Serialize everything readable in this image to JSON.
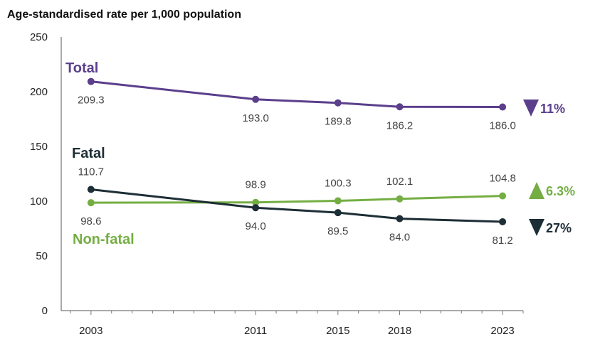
{
  "chart_data": {
    "type": "line",
    "title": "Age-standardised rate per 1,000 population",
    "x": [
      2003,
      2011,
      2015,
      2018,
      2023
    ],
    "x_tick_labels": [
      "2003",
      "2011",
      "2015",
      "2018",
      "2023"
    ],
    "xlim": [
      2001,
      2024
    ],
    "ylim": [
      0,
      250
    ],
    "y_ticks": [
      0,
      50,
      100,
      150,
      200,
      250
    ],
    "grid": false,
    "series": [
      {
        "key": "total",
        "name": "Total",
        "color": "#5B3F8C",
        "values": [
          209.3,
          193.0,
          189.8,
          186.2,
          186.0
        ],
        "value_labels": [
          "209.3",
          "193.0",
          "189.8",
          "186.2",
          "186.0"
        ],
        "change": {
          "direction": "down",
          "label": "11%"
        }
      },
      {
        "key": "fatal",
        "name": "Fatal",
        "color": "#1D2E36",
        "values": [
          110.7,
          94.0,
          89.5,
          84.0,
          81.2
        ],
        "value_labels": [
          "110.7",
          "94.0",
          "89.5",
          "84.0",
          "81.2"
        ],
        "change": {
          "direction": "down",
          "label": "27%"
        }
      },
      {
        "key": "nonfatal",
        "name": "Non-fatal",
        "color": "#74AE43",
        "values": [
          98.6,
          98.9,
          100.3,
          102.1,
          104.8
        ],
        "value_labels": [
          "98.6",
          "98.9",
          "100.3",
          "102.1",
          "104.8"
        ],
        "change": {
          "direction": "up",
          "label": "6.3%"
        }
      }
    ]
  }
}
